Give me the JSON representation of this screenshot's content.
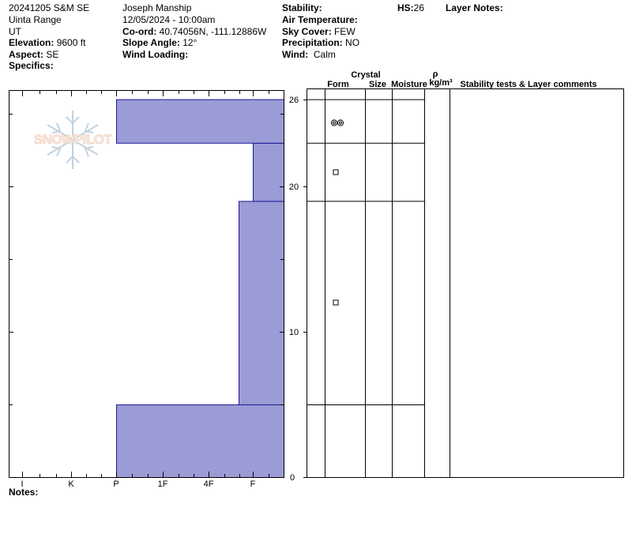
{
  "header": {
    "col1": {
      "obs_name": "20241205 S&M SE",
      "range": "Uinta Range",
      "state": "UT",
      "elevation_label": "Elevation:",
      "elevation_value": "9600 ft",
      "aspect_label": "Aspect:",
      "aspect_value": "SE",
      "specifics_label": "Specifics:"
    },
    "col2": {
      "observer": "Joseph Manship",
      "datetime": "12/05/2024 - 10:00am",
      "coord_label": "Co-ord:",
      "coord_value": "40.74056N, -111.12886W",
      "slope_label": "Slope Angle:",
      "slope_value": "12°",
      "wind_loading_label": "Wind Loading:"
    },
    "col3": {
      "stability_label": "Stability:",
      "air_temp_label": "Air Temperature:",
      "sky_label": "Sky Cover:",
      "sky_value": "FEW",
      "precip_label": "Precipitation:",
      "precip_value": "NO",
      "wind_label": "Wind:",
      "wind_value": "Calm"
    },
    "hs_label": "HS:",
    "hs_value": "26",
    "layer_notes_label": "Layer Notes:"
  },
  "notes_label": "Notes:",
  "watermark_text": "SNOWPILOT",
  "table_headers": {
    "crystal": "Crystal",
    "form": "Form",
    "size": "Size",
    "moisture": "Moisture",
    "rho": "ρ",
    "density_unit": "kg/m³",
    "comments": "Stability tests & Layer comments"
  },
  "colors": {
    "layer_fill": "#9b9bd6",
    "layer_stroke": "#1a1a99"
  },
  "chart_data": {
    "type": "bar",
    "orientation": "horizontal",
    "x_categories": [
      "I",
      "K",
      "P",
      "1F",
      "4F",
      "F"
    ],
    "y_axis_ticks": [
      "0",
      "10",
      "20",
      "26"
    ],
    "ylim": [
      0,
      26
    ],
    "layers": [
      {
        "bottom": 0,
        "top": 5,
        "hardness": "P",
        "grain_form": ""
      },
      {
        "bottom": 5,
        "top": 19,
        "hardness": "F+",
        "grain_form": "faceted"
      },
      {
        "bottom": 19,
        "top": 23,
        "hardness": "F-",
        "grain_form": "faceted"
      },
      {
        "bottom": 23,
        "top": 26,
        "hardness": "P",
        "grain_form": "graupel"
      }
    ],
    "layer_boundaries": [
      5,
      19,
      23,
      26
    ]
  }
}
